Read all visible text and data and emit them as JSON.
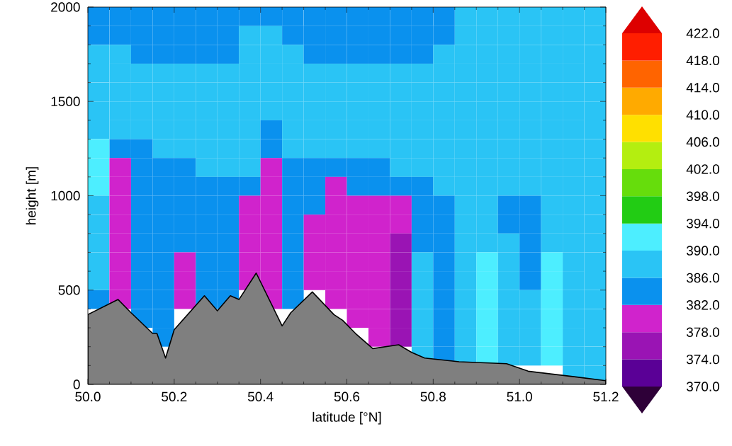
{
  "chart_data": {
    "type": "heatmap",
    "xlabel": "latitude [°N]",
    "ylabel": "height [m]",
    "xlim": [
      50.0,
      51.2
    ],
    "ylim": [
      0,
      2000
    ],
    "xticks": [
      {
        "value": 50.0,
        "label": "50.0"
      },
      {
        "value": 50.2,
        "label": "50.2"
      },
      {
        "value": 50.4,
        "label": "50.4"
      },
      {
        "value": 50.6,
        "label": "50.6"
      },
      {
        "value": 50.8,
        "label": "50.8"
      },
      {
        "value": 51.0,
        "label": "51.0"
      },
      {
        "value": 51.2,
        "label": "51.2"
      }
    ],
    "yticks": [
      0,
      500,
      1000,
      1500,
      2000
    ],
    "clim": [
      370,
      422
    ],
    "cticks": [
      {
        "value": 370,
        "label": "370.0"
      },
      {
        "value": 374,
        "label": "374.0"
      },
      {
        "value": 378,
        "label": "378.0"
      },
      {
        "value": 382,
        "label": "382.0"
      },
      {
        "value": 386,
        "label": "386.0"
      },
      {
        "value": 390,
        "label": "390.0"
      },
      {
        "value": 394,
        "label": "394.0"
      },
      {
        "value": 398,
        "label": "398.0"
      },
      {
        "value": 402,
        "label": "402.0"
      },
      {
        "value": 406,
        "label": "406.0"
      },
      {
        "value": 410,
        "label": "410.0"
      },
      {
        "value": 414,
        "label": "414.0"
      },
      {
        "value": 418,
        "label": "418.0"
      },
      {
        "value": 422,
        "label": "422.0"
      }
    ],
    "colors": [
      "#2e0038",
      "#5a0096",
      "#9a14b4",
      "#d023cc",
      "#0a91ee",
      "#2ac4f5",
      "#4deeff",
      "#22cc14",
      "#66dd0c",
      "#b4ee10",
      "#ffe000",
      "#ffaa00",
      "#ff6400",
      "#ff1e00",
      "#dd0000"
    ],
    "cells": [
      [
        384,
        384,
        384,
        384,
        384,
        384,
        384,
        384,
        384,
        384,
        384,
        384,
        384,
        384,
        384,
        384,
        384,
        388,
        388,
        388,
        388,
        388,
        388,
        388
      ],
      [
        384,
        384,
        384,
        384,
        384,
        384,
        384,
        388,
        388,
        384,
        384,
        384,
        384,
        384,
        384,
        384,
        384,
        388,
        388,
        388,
        388,
        388,
        388,
        388
      ],
      [
        388,
        388,
        384,
        384,
        384,
        384,
        384,
        388,
        388,
        388,
        384,
        384,
        384,
        384,
        384,
        384,
        388,
        388,
        388,
        388,
        388,
        388,
        388,
        388
      ],
      [
        388,
        388,
        388,
        388,
        388,
        388,
        388,
        388,
        388,
        388,
        388,
        388,
        388,
        388,
        388,
        388,
        388,
        388,
        388,
        388,
        388,
        388,
        388,
        388
      ],
      [
        388,
        388,
        388,
        388,
        388,
        388,
        388,
        388,
        388,
        388,
        388,
        388,
        388,
        388,
        388,
        388,
        388,
        388,
        388,
        388,
        388,
        388,
        388,
        388
      ],
      [
        388,
        388,
        388,
        388,
        388,
        388,
        388,
        388,
        388,
        388,
        388,
        388,
        388,
        388,
        388,
        388,
        388,
        388,
        388,
        388,
        388,
        388,
        388,
        388
      ],
      [
        388,
        388,
        388,
        388,
        388,
        388,
        388,
        388,
        384,
        388,
        388,
        388,
        388,
        388,
        388,
        388,
        388,
        388,
        388,
        388,
        388,
        388,
        388,
        388
      ],
      [
        392,
        384,
        384,
        388,
        388,
        388,
        388,
        388,
        384,
        388,
        388,
        388,
        388,
        388,
        388,
        388,
        388,
        388,
        388,
        388,
        388,
        388,
        388,
        388
      ],
      [
        392,
        380,
        384,
        384,
        384,
        388,
        388,
        388,
        380,
        384,
        384,
        384,
        384,
        384,
        388,
        388,
        388,
        388,
        388,
        388,
        388,
        388,
        388,
        388
      ],
      [
        392,
        380,
        384,
        384,
        384,
        384,
        384,
        384,
        380,
        384,
        384,
        380,
        384,
        384,
        384,
        384,
        388,
        388,
        388,
        388,
        388,
        388,
        388,
        388
      ],
      [
        388,
        380,
        384,
        384,
        384,
        384,
        384,
        380,
        380,
        384,
        384,
        380,
        380,
        380,
        380,
        384,
        384,
        388,
        388,
        384,
        384,
        388,
        388,
        388
      ],
      [
        388,
        380,
        384,
        384,
        384,
        384,
        384,
        380,
        380,
        384,
        380,
        380,
        380,
        380,
        380,
        384,
        384,
        388,
        388,
        384,
        384,
        388,
        388,
        388
      ],
      [
        388,
        380,
        384,
        384,
        384,
        384,
        384,
        380,
        380,
        384,
        380,
        380,
        380,
        380,
        376,
        384,
        384,
        388,
        388,
        388,
        384,
        388,
        388,
        388
      ],
      [
        388,
        380,
        384,
        384,
        380,
        384,
        384,
        380,
        380,
        384,
        380,
        380,
        380,
        380,
        376,
        388,
        384,
        388,
        392,
        388,
        384,
        392,
        388,
        388
      ],
      [
        388,
        380,
        384,
        384,
        380,
        384,
        384,
        380,
        380,
        384,
        380,
        380,
        380,
        380,
        376,
        388,
        384,
        388,
        392,
        388,
        384,
        392,
        388,
        388
      ],
      [
        384,
        380,
        384,
        384,
        380,
        384,
        384,
        null,
        380,
        384,
        null,
        380,
        380,
        380,
        376,
        388,
        384,
        388,
        392,
        388,
        388,
        392,
        388,
        388
      ],
      [
        null,
        null,
        384,
        384,
        null,
        null,
        null,
        null,
        null,
        null,
        null,
        null,
        380,
        380,
        376,
        388,
        384,
        388,
        392,
        388,
        388,
        392,
        388,
        388
      ],
      [
        null,
        null,
        null,
        384,
        null,
        null,
        null,
        null,
        null,
        null,
        null,
        null,
        null,
        380,
        376,
        388,
        384,
        388,
        392,
        388,
        388,
        392,
        388,
        388
      ],
      [
        null,
        null,
        null,
        null,
        null,
        null,
        null,
        null,
        null,
        null,
        null,
        null,
        null,
        null,
        null,
        388,
        384,
        388,
        392,
        388,
        388,
        392,
        388,
        388
      ],
      [
        null,
        null,
        null,
        null,
        null,
        null,
        null,
        null,
        null,
        null,
        null,
        null,
        null,
        null,
        null,
        null,
        null,
        null,
        null,
        null,
        null,
        null,
        388,
        388
      ]
    ],
    "series": [
      {
        "type": "area",
        "color": "#7f7f7f",
        "x": [
          50.0,
          50.07,
          50.1,
          50.15,
          50.16,
          50.18,
          50.2,
          50.27,
          50.3,
          50.33,
          50.35,
          50.39,
          50.45,
          50.47,
          50.52,
          50.57,
          50.59,
          50.62,
          50.66,
          50.72,
          50.75,
          50.78,
          50.86,
          50.97,
          51.02,
          51.13,
          51.2
        ],
        "values": [
          370,
          450,
          380,
          270,
          270,
          140,
          290,
          470,
          390,
          470,
          450,
          590,
          310,
          380,
          490,
          370,
          340,
          270,
          190,
          210,
          170,
          140,
          120,
          110,
          70,
          40,
          20
        ]
      }
    ]
  }
}
